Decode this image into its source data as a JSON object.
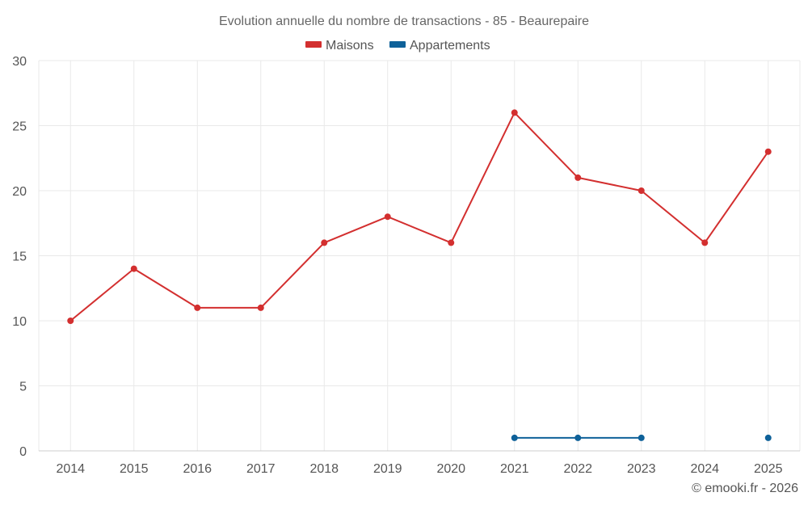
{
  "chart_data": {
    "type": "line",
    "title": "Evolution annuelle du nombre de transactions - 85 - Beaurepaire",
    "categories": [
      "2014",
      "2015",
      "2016",
      "2017",
      "2018",
      "2019",
      "2020",
      "2021",
      "2022",
      "2023",
      "2024",
      "2025"
    ],
    "series": [
      {
        "name": "Maisons",
        "color": "#d32f2f",
        "values": [
          10,
          14,
          11,
          11,
          16,
          18,
          16,
          26,
          21,
          20,
          16,
          23
        ]
      },
      {
        "name": "Appartements",
        "color": "#0e6199",
        "values": [
          null,
          null,
          null,
          null,
          null,
          null,
          null,
          1,
          1,
          1,
          null,
          1
        ]
      }
    ],
    "y_ticks": [
      "0",
      "5",
      "10",
      "15",
      "20",
      "25",
      "30"
    ],
    "ylim": [
      0,
      30
    ],
    "xlabel": "",
    "ylabel": "",
    "grid": true,
    "legend_position": "top-center"
  },
  "credit": "© emooki.fr - 2026"
}
